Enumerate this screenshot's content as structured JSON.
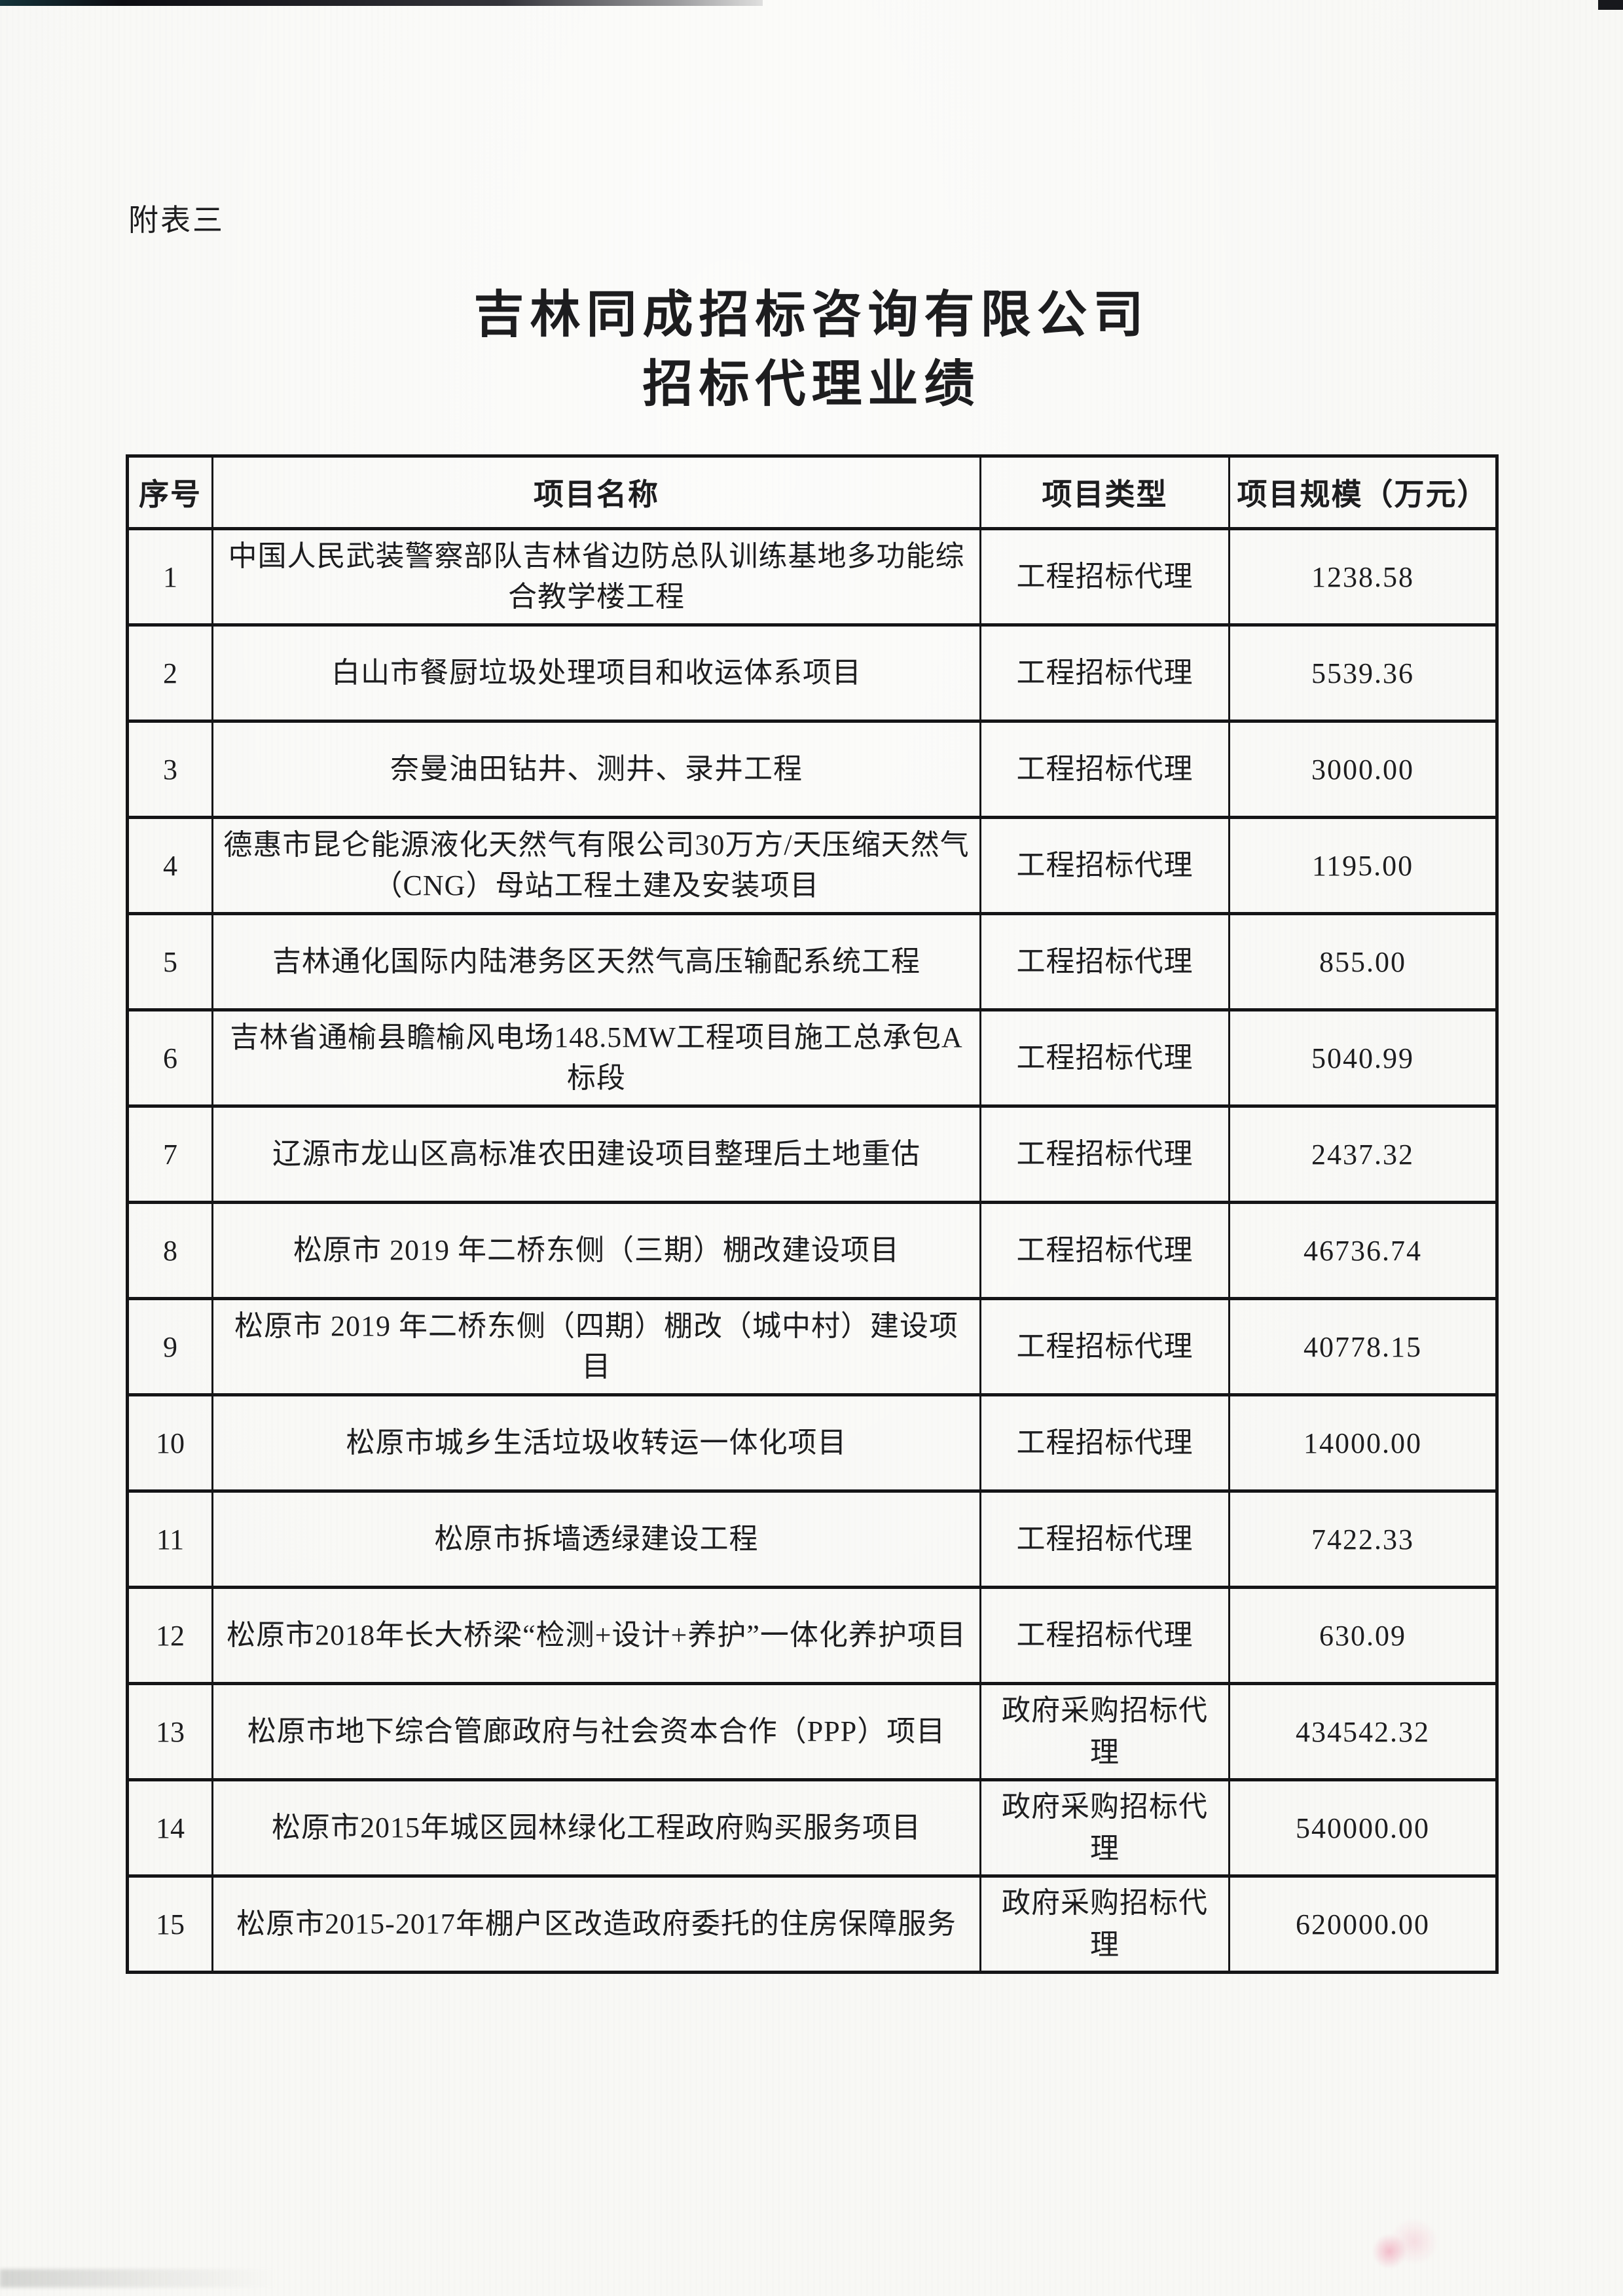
{
  "page": {
    "corner_label": "附表三",
    "title_line1": "吉林同成招标咨询有限公司",
    "title_line2": "招标代理业绩"
  },
  "table": {
    "headers": {
      "no": "序号",
      "name": "项目名称",
      "type": "项目类型",
      "scale": "项目规模（万元）"
    },
    "rows": [
      {
        "no": "1",
        "name": "中国人民武装警察部队吉林省边防总队训练基地多功能综合教学楼工程",
        "type": "工程招标代理",
        "scale": "1238.58"
      },
      {
        "no": "2",
        "name": "白山市餐厨垃圾处理项目和收运体系项目",
        "type": "工程招标代理",
        "scale": "5539.36"
      },
      {
        "no": "3",
        "name": "奈曼油田钻井、测井、录井工程",
        "type": "工程招标代理",
        "scale": "3000.00"
      },
      {
        "no": "4",
        "name": "德惠市昆仑能源液化天然气有限公司30万方/天压缩天然气（CNG）母站工程土建及安装项目",
        "type": "工程招标代理",
        "scale": "1195.00"
      },
      {
        "no": "5",
        "name": "吉林通化国际内陆港务区天然气高压输配系统工程",
        "type": "工程招标代理",
        "scale": "855.00"
      },
      {
        "no": "6",
        "name": "吉林省通榆县瞻榆风电场148.5MW工程项目施工总承包A标段",
        "type": "工程招标代理",
        "scale": "5040.99"
      },
      {
        "no": "7",
        "name": "辽源市龙山区高标准农田建设项目整理后土地重估",
        "type": "工程招标代理",
        "scale": "2437.32"
      },
      {
        "no": "8",
        "name": "松原市 2019 年二桥东侧（三期）棚改建设项目",
        "type": "工程招标代理",
        "scale": "46736.74"
      },
      {
        "no": "9",
        "name": "松原市 2019 年二桥东侧（四期）棚改（城中村）建设项目",
        "type": "工程招标代理",
        "scale": "40778.15"
      },
      {
        "no": "10",
        "name": "松原市城乡生活垃圾收转运一体化项目",
        "type": "工程招标代理",
        "scale": "14000.00"
      },
      {
        "no": "11",
        "name": "松原市拆墙透绿建设工程",
        "type": "工程招标代理",
        "scale": "7422.33"
      },
      {
        "no": "12",
        "name": "松原市2018年长大桥梁“检测+设计+养护”一体化养护项目",
        "type": "工程招标代理",
        "scale": "630.09"
      },
      {
        "no": "13",
        "name": "松原市地下综合管廊政府与社会资本合作（PPP）项目",
        "type": "政府采购招标代理",
        "scale": "434542.32"
      },
      {
        "no": "14",
        "name": "松原市2015年城区园林绿化工程政府购买服务项目",
        "type": "政府采购招标代理",
        "scale": "540000.00"
      },
      {
        "no": "15",
        "name": "松原市2015-2017年棚户区改造政府委托的住房保障服务",
        "type": "政府采购招标代理",
        "scale": "620000.00"
      }
    ]
  },
  "colors": {
    "paper": "#f8f8f5",
    "ink": "#1d1d1f",
    "border": "#151517",
    "smudge": "#e95a82"
  }
}
